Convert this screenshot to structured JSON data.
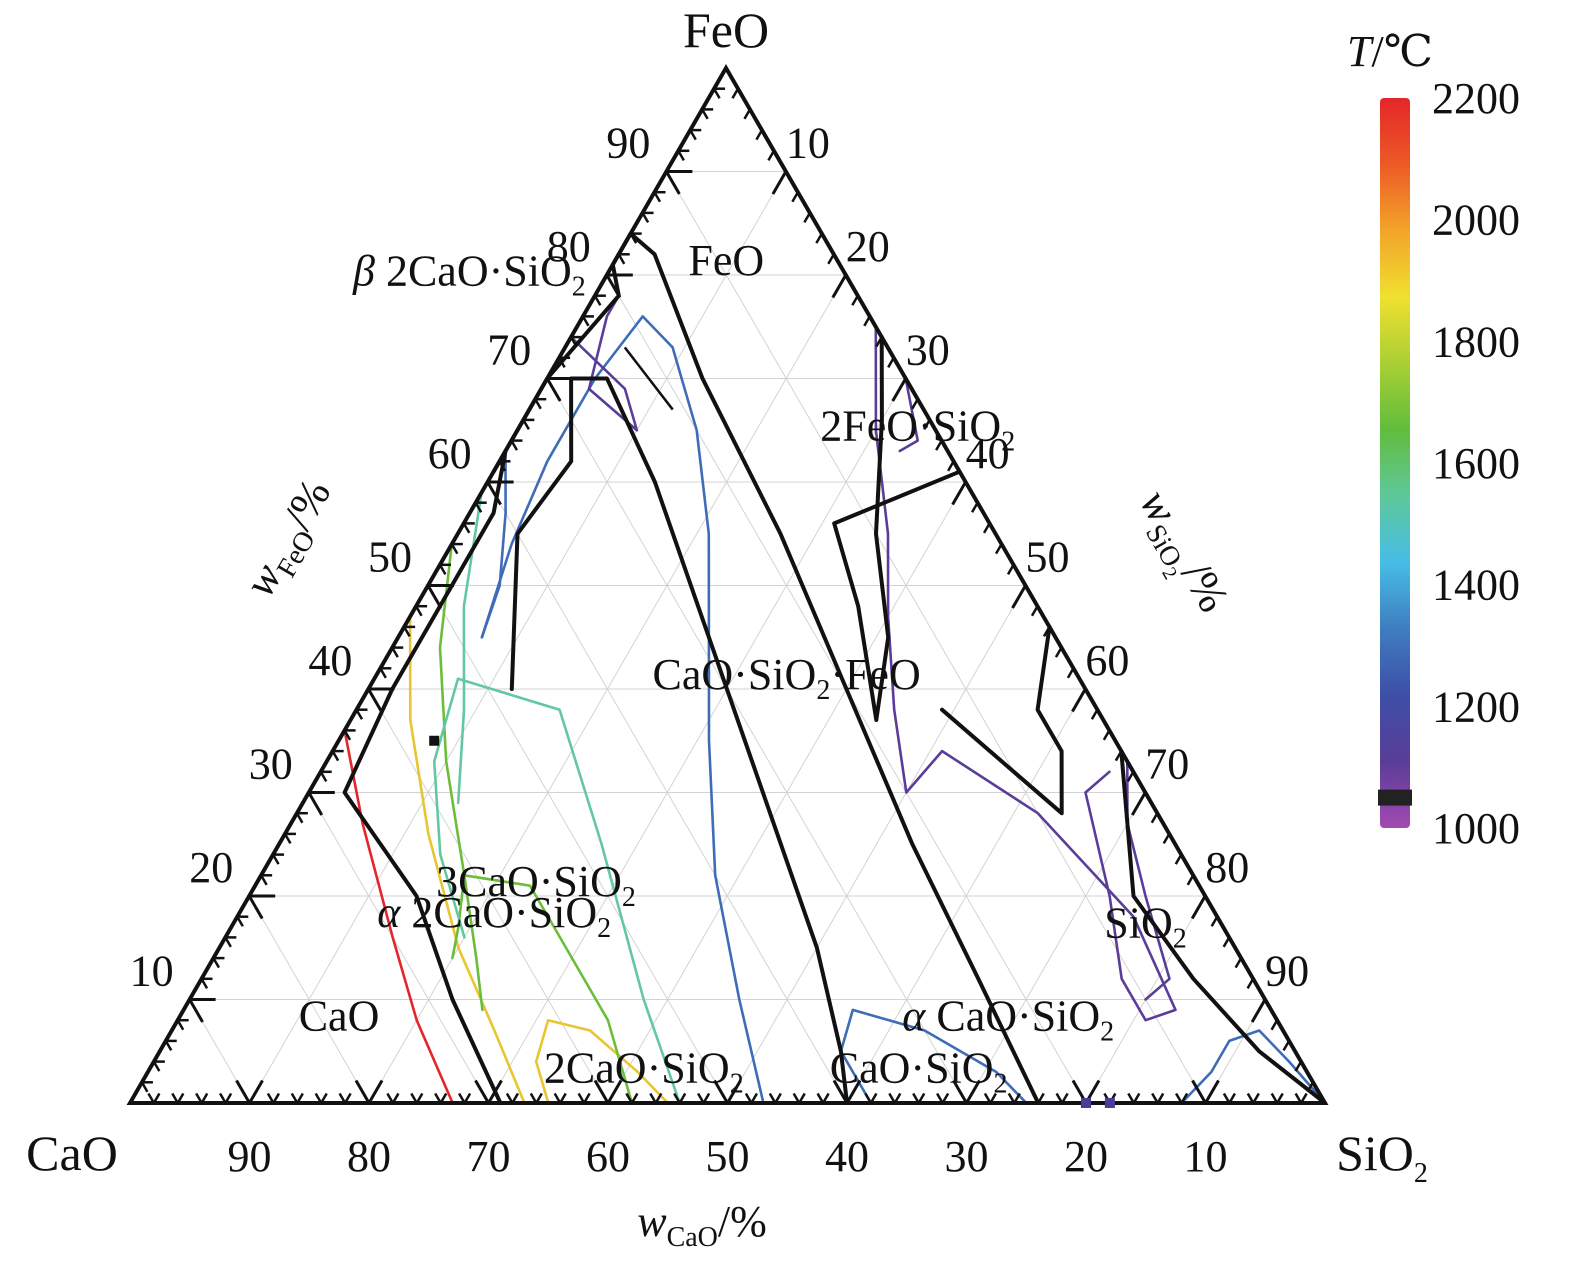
{
  "chart_data": {
    "type": "ternary",
    "vertices": {
      "top": "FeO",
      "left": "CaO",
      "right": "SiO2"
    },
    "corner_labels": {
      "top": {
        "text": "FeO"
      },
      "left": {
        "text": "CaO"
      },
      "right": {
        "main": "SiO",
        "sub": "2"
      }
    },
    "axis_labels": {
      "bottom": {
        "italic": "w",
        "sub": "CaO",
        "rest": "/%"
      },
      "left": {
        "italic": "w",
        "sub": "FeO",
        "rest": "/%"
      },
      "right": {
        "italic": "w",
        "sub": "SiO",
        "sub2": "2",
        "rest": "/%"
      }
    },
    "tick_labels": {
      "cao": [
        "90",
        "80",
        "70",
        "60",
        "50",
        "40",
        "30",
        "20",
        "10"
      ],
      "feo": [
        "10",
        "20",
        "30",
        "40",
        "50",
        "60",
        "70",
        "80",
        "90"
      ],
      "sio2": [
        "10",
        "20",
        "30",
        "40",
        "50",
        "60",
        "70",
        "80",
        "90"
      ]
    },
    "grid": true,
    "colorbar": {
      "title": {
        "italic": "T",
        "rest": "/℃"
      },
      "ticks": [
        "2200",
        "2000",
        "1800",
        "1600",
        "1400",
        "1200",
        "1000"
      ],
      "range": [
        1000,
        2200
      ],
      "colors": [
        "#a24ab0",
        "#5a3d98",
        "#3d4fa6",
        "#3f7dc0",
        "#46bde6",
        "#5fc89a",
        "#60bd3c",
        "#a9cf34",
        "#f0e030",
        "#f3a42a",
        "#ec5a25",
        "#e4262a"
      ],
      "marker_value": 1050
    },
    "phase_labels": [
      {
        "parts": [
          {
            "t": "FeO"
          }
        ],
        "at": [
          80,
          10,
          10
        ]
      },
      {
        "parts": [
          {
            "t": "2FeO·SiO"
          },
          {
            "t": "2",
            "sub": true
          }
        ],
        "at": [
          64,
          2,
          34
        ]
      },
      {
        "parts": [
          {
            "t": "CaO·SiO"
          },
          {
            "t": "2",
            "sub": true
          },
          {
            "t": "·FeO"
          }
        ],
        "at": [
          40,
          25,
          35
        ]
      },
      {
        "parts": [
          {
            "t": "3CaO·SiO"
          },
          {
            "t": "2",
            "sub": true
          }
        ],
        "at": [
          20,
          56,
          24
        ]
      },
      {
        "parts": [
          {
            "t": "α",
            "italic": true
          },
          {
            "t": " 2CaO·SiO"
          },
          {
            "t": "2",
            "sub": true
          }
        ],
        "at": [
          17,
          61,
          22
        ]
      },
      {
        "parts": [
          {
            "t": "CaO"
          }
        ],
        "at": [
          7,
          79,
          14
        ]
      },
      {
        "parts": [
          {
            "t": "2CaO·SiO"
          },
          {
            "t": "2",
            "sub": true
          }
        ],
        "at": [
          2,
          56,
          42
        ]
      },
      {
        "parts": [
          {
            "t": "CaO·SiO"
          },
          {
            "t": "2",
            "sub": true
          }
        ],
        "at": [
          2,
          33,
          65
        ]
      },
      {
        "parts": [
          {
            "t": "α",
            "italic": true
          },
          {
            "t": " CaO·SiO"
          },
          {
            "t": "2",
            "sub": true
          }
        ],
        "at": [
          7,
          23,
          70
        ]
      },
      {
        "parts": [
          {
            "t": "SiO"
          },
          {
            "t": "2",
            "sub": true
          }
        ],
        "at": [
          16,
          7,
          77
        ]
      },
      {
        "parts": [
          {
            "t": "β",
            "italic": true
          },
          {
            "t": " 2CaO·SiO"
          },
          {
            "t": "2",
            "sub": true
          }
        ],
        "at": [
          79,
          32,
          -11
        ]
      }
    ],
    "leader": [
      [
        73,
        22,
        5
      ],
      [
        67,
        21,
        12
      ]
    ],
    "series": [
      {
        "temp": 2200,
        "color": "#e4262a",
        "points": [
          [
            36,
            64,
            0
          ],
          [
            27,
            67,
            6
          ],
          [
            16,
            70,
            14
          ],
          [
            8,
            72,
            20
          ],
          [
            0,
            73,
            27
          ]
        ]
      },
      {
        "temp": 2000,
        "color": "#e8c531",
        "points": [
          [
            47,
            53,
            0
          ],
          [
            37,
            58,
            5
          ],
          [
            26,
            62,
            12
          ],
          [
            15,
            65,
            20
          ],
          [
            7,
            66,
            27
          ],
          [
            0,
            67,
            33
          ]
        ]
      },
      {
        "temp": 2000,
        "color": "#e8c531",
        "points": [
          [
            0,
            65,
            35
          ],
          [
            4,
            64,
            32
          ],
          [
            8,
            61,
            31
          ],
          [
            7,
            58,
            35
          ],
          [
            3,
            56,
            41
          ],
          [
            0,
            55,
            45
          ]
        ]
      },
      {
        "temp": 1800,
        "color": "#6cbe3a",
        "points": [
          [
            54,
            46,
            0
          ],
          [
            44,
            52,
            4
          ],
          [
            33,
            57,
            10
          ],
          [
            22,
            61,
            17
          ],
          [
            14,
            64,
            22
          ],
          [
            9,
            66,
            25
          ]
        ]
      },
      {
        "temp": 1800,
        "color": "#6cbe3a",
        "points": [
          [
            14,
            66,
            20
          ],
          [
            17,
            64,
            19
          ],
          [
            22,
            61,
            17
          ],
          [
            21,
            56,
            23
          ],
          [
            16,
            56,
            28
          ],
          [
            8,
            56,
            36
          ],
          [
            0,
            58,
            42
          ]
        ]
      },
      {
        "temp": 1600,
        "color": "#63c8a2",
        "points": [
          [
            59,
            41,
            0
          ],
          [
            48,
            48,
            4
          ],
          [
            38,
            53,
            9
          ],
          [
            29,
            58,
            13
          ]
        ]
      },
      {
        "temp": 1600,
        "color": "#63c8a2",
        "points": [
          [
            16,
            64,
            20
          ],
          [
            24,
            62,
            14
          ],
          [
            33,
            58,
            9
          ],
          [
            41,
            52,
            7
          ],
          [
            38,
            45,
            17
          ],
          [
            25,
            48,
            27
          ],
          [
            10,
            52,
            38
          ],
          [
            0,
            54,
            46
          ]
        ]
      },
      {
        "temp": 1400,
        "color": "#3f6cb8",
        "points": [
          [
            45,
            48,
            7
          ],
          [
            54,
            41,
            5
          ],
          [
            62,
            34,
            4
          ],
          [
            70,
            26,
            4
          ],
          [
            76,
            19,
            5
          ],
          [
            73,
            18,
            9
          ],
          [
            65,
            20,
            15
          ],
          [
            55,
            24,
            21
          ],
          [
            45,
            29,
            26
          ],
          [
            35,
            34,
            31
          ],
          [
            22,
            40,
            38
          ],
          [
            10,
            44,
            46
          ],
          [
            0,
            47,
            53
          ]
        ]
      },
      {
        "temp": 1400,
        "color": "#3f6cb8",
        "points": [
          [
            63,
            37,
            0
          ],
          [
            57,
            40,
            3
          ],
          [
            50,
            44,
            6
          ],
          [
            45,
            48,
            7
          ]
        ]
      },
      {
        "temp": 1400,
        "color": "#3f6cb8",
        "points": [
          [
            0,
            38,
            62
          ],
          [
            5,
            38,
            57
          ],
          [
            9,
            35,
            56
          ],
          [
            7,
            30,
            63
          ],
          [
            3,
            26,
            71
          ],
          [
            0,
            25,
            75
          ]
        ]
      },
      {
        "temp": 1400,
        "color": "#3f6cb8",
        "points": [
          [
            0,
            12,
            88
          ],
          [
            3,
            8,
            89
          ],
          [
            6,
            5,
            89
          ],
          [
            7,
            2,
            91
          ],
          [
            4,
            1,
            95
          ],
          [
            0,
            0,
            100
          ]
        ]
      },
      {
        "temp": 1100,
        "color": "#5a3d98",
        "points": [
          [
            74,
            26,
            0
          ],
          [
            69,
            24,
            7
          ],
          [
            65,
            25,
            10
          ],
          [
            69,
            27,
            4
          ],
          [
            76,
            22,
            2
          ],
          [
            78,
            20,
            2
          ]
        ]
      },
      {
        "temp": 1100,
        "color": "#5a3d98",
        "points": [
          [
            75,
            0,
            25
          ],
          [
            70,
            0,
            30
          ],
          [
            64,
            2,
            34
          ],
          [
            63,
            4,
            33
          ]
        ]
      },
      {
        "temp": 1100,
        "color": "#5a3d98",
        "points": [
          [
            75,
            0,
            25
          ],
          [
            65,
            5,
            30
          ],
          [
            55,
            9,
            36
          ],
          [
            47,
            13,
            40
          ],
          [
            38,
            17,
            45
          ],
          [
            30,
            20,
            50
          ],
          [
            34,
            15,
            51
          ],
          [
            28,
            10,
            62
          ],
          [
            18,
            7,
            75
          ],
          [
            9,
            8,
            83
          ],
          [
            8,
            11,
            81
          ],
          [
            12,
            11,
            77
          ],
          [
            20,
            8,
            72
          ],
          [
            30,
            5,
            65
          ],
          [
            32,
            2,
            66
          ]
        ]
      },
      {
        "temp": 1100,
        "color": "#5a3d98",
        "points": [
          [
            33,
            0,
            67
          ],
          [
            27,
            3,
            70
          ],
          [
            20,
            5,
            75
          ],
          [
            12,
            7,
            81
          ],
          [
            10,
            10,
            80
          ]
        ]
      }
    ],
    "boundaries": [
      [
        [
          61,
          39,
          0
        ],
        [
          70,
          30,
          0
        ],
        [
          78,
          20,
          2
        ],
        [
          81,
          19,
          0
        ],
        [
          84,
          16,
          0
        ],
        [
          82,
          15,
          3
        ],
        [
          70,
          17,
          13
        ],
        [
          55,
          18,
          27
        ],
        [
          40,
          20,
          40
        ],
        [
          25,
          22,
          53
        ],
        [
          12,
          23,
          65
        ],
        [
          0,
          24,
          76
        ]
      ],
      [
        [
          63,
          37,
          0
        ],
        [
          57,
          41,
          2
        ],
        [
          50,
          48,
          2
        ],
        [
          40,
          58,
          2
        ],
        [
          30,
          67,
          3
        ],
        [
          20,
          66,
          14
        ],
        [
          10,
          68,
          22
        ],
        [
          0,
          69,
          31
        ]
      ],
      [
        [
          40,
          48,
          12
        ],
        [
          55,
          40,
          5
        ],
        [
          62,
          32,
          6
        ],
        [
          70,
          28,
          2
        ],
        [
          70,
          25,
          5
        ],
        [
          60,
          26,
          14
        ],
        [
          45,
          29,
          26
        ],
        [
          30,
          32,
          38
        ],
        [
          15,
          35,
          50
        ],
        [
          5,
          38,
          57
        ],
        [
          0,
          40,
          60
        ]
      ],
      [
        [
          74,
          0,
          26
        ],
        [
          66,
          4,
          30
        ],
        [
          55,
          10,
          35
        ],
        [
          45,
          14,
          41
        ],
        [
          37,
          19,
          44
        ],
        [
          48,
          15,
          37
        ],
        [
          56,
          13,
          31
        ],
        [
          61,
          0,
          39
        ]
      ],
      [
        [
          46,
          0,
          54
        ],
        [
          38,
          5,
          57
        ],
        [
          34,
          5,
          61
        ],
        [
          28,
          8,
          64
        ],
        [
          38,
          13,
          49
        ]
      ],
      [
        [
          34,
          0,
          66
        ],
        [
          20,
          6,
          74
        ],
        [
          12,
          5,
          83
        ],
        [
          5,
          3,
          92
        ],
        [
          0,
          0,
          100
        ]
      ]
    ],
    "markers": [
      [
        35,
        57,
        8
      ],
      [
        0,
        20,
        80
      ],
      [
        0,
        18,
        82
      ]
    ]
  }
}
